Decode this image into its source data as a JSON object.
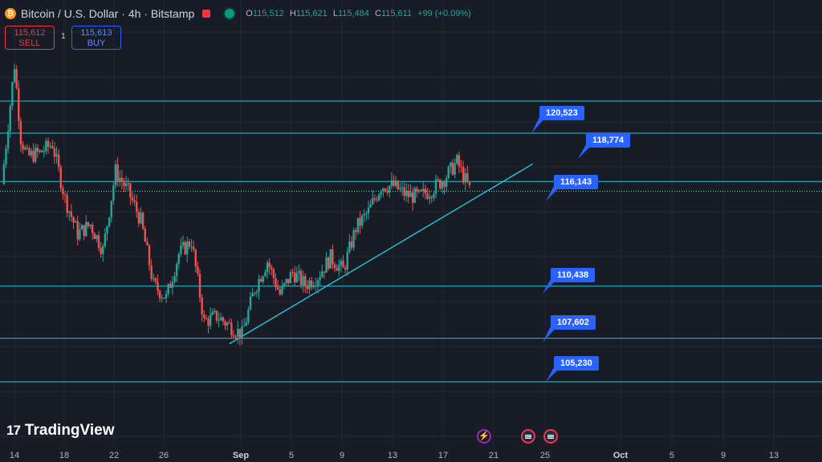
{
  "header": {
    "title": "Bitcoin / U.S. Dollar · 4h · Bitstamp",
    "ohlc": {
      "o_key": "O",
      "o": "115,512",
      "h_key": "H",
      "h": "115,621",
      "l_key": "L",
      "l": "115,484",
      "c_key": "C",
      "c": "115,611",
      "change": "+99 (+0.09%)"
    }
  },
  "trade": {
    "sell_price": "115,612",
    "sell_label": "SELL",
    "spread": "1",
    "buy_price": "115,613",
    "buy_label": "BUY"
  },
  "brand": {
    "mark": "17",
    "name": "TradingView"
  },
  "colors": {
    "background": "#181c27",
    "up": "#26a69a",
    "down": "#ef5350",
    "level_line": "#26c6da",
    "badge": "#2962ff"
  },
  "chart_data": {
    "type": "candlestick",
    "symbol": "BTCUSD",
    "timeframe": "4h",
    "ylim": [
      103000,
      123000
    ],
    "x_ticks": [
      "14",
      "18",
      "22",
      "26",
      "Sep",
      "5",
      "9",
      "13",
      "17",
      "21",
      "25",
      "Oct",
      "5",
      "9",
      "13"
    ],
    "price_path": [
      {
        "date": "2025-08-13",
        "price": 116000
      },
      {
        "date": "2025-08-14",
        "price": 122500
      },
      {
        "date": "2025-08-14T12",
        "price": 118500
      },
      {
        "date": "2025-08-15",
        "price": 117500
      },
      {
        "date": "2025-08-16",
        "price": 117700
      },
      {
        "date": "2025-08-17",
        "price": 118200
      },
      {
        "date": "2025-08-18",
        "price": 115200
      },
      {
        "date": "2025-08-19",
        "price": 113300
      },
      {
        "date": "2025-08-20",
        "price": 113800
      },
      {
        "date": "2025-08-21",
        "price": 112400
      },
      {
        "date": "2025-08-22",
        "price": 116700
      },
      {
        "date": "2025-08-23",
        "price": 115600
      },
      {
        "date": "2025-08-24",
        "price": 114000
      },
      {
        "date": "2025-08-25",
        "price": 110500
      },
      {
        "date": "2025-08-26",
        "price": 109800
      },
      {
        "date": "2025-08-27",
        "price": 112200
      },
      {
        "date": "2025-08-28",
        "price": 112900
      },
      {
        "date": "2025-08-29",
        "price": 108500
      },
      {
        "date": "2025-08-30",
        "price": 108800
      },
      {
        "date": "2025-08-31",
        "price": 108300
      },
      {
        "date": "2025-09-01",
        "price": 107800
      },
      {
        "date": "2025-09-02",
        "price": 110300
      },
      {
        "date": "2025-09-03",
        "price": 111800
      },
      {
        "date": "2025-09-04",
        "price": 110000
      },
      {
        "date": "2025-09-05",
        "price": 111200
      },
      {
        "date": "2025-09-06",
        "price": 110500
      },
      {
        "date": "2025-09-07",
        "price": 111000
      },
      {
        "date": "2025-09-08",
        "price": 112000
      },
      {
        "date": "2025-09-09",
        "price": 111300
      },
      {
        "date": "2025-09-10",
        "price": 113600
      },
      {
        "date": "2025-09-11",
        "price": 114500
      },
      {
        "date": "2025-09-12",
        "price": 115900
      },
      {
        "date": "2025-09-13",
        "price": 115900
      },
      {
        "date": "2025-09-14",
        "price": 115400
      },
      {
        "date": "2025-09-15",
        "price": 115300
      },
      {
        "date": "2025-09-16",
        "price": 115700
      },
      {
        "date": "2025-09-17",
        "price": 116300
      },
      {
        "date": "2025-09-18",
        "price": 117200
      },
      {
        "date": "2025-09-19",
        "price": 115700
      }
    ],
    "horizontal_levels": [
      120523,
      118774,
      116143,
      110438,
      107602,
      105230
    ],
    "last_price": 115611,
    "trendline": {
      "from": {
        "date": "2025-08-31",
        "price": 107300
      },
      "to": {
        "date": "2025-09-24",
        "price": 117100
      }
    },
    "events": [
      {
        "icon": "lightning-icon",
        "date": "2025-09-20"
      },
      {
        "icon": "us-flag-icon",
        "date": "2025-09-22"
      },
      {
        "icon": "us-flag-icon",
        "date": "2025-09-23"
      }
    ]
  }
}
